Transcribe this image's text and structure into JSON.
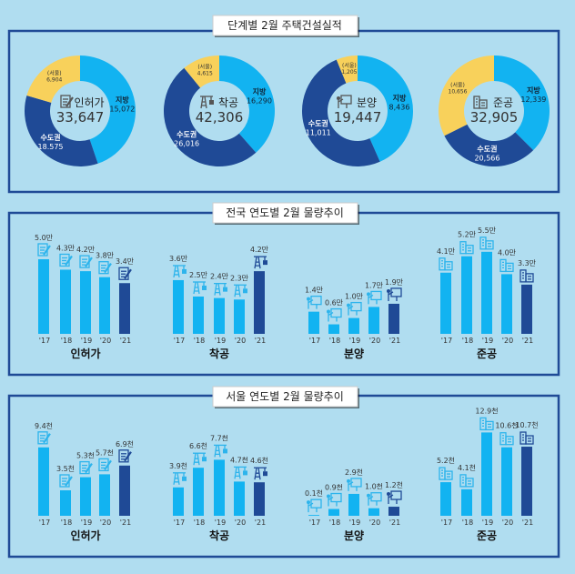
{
  "colors": {
    "background": "#b0ddf0",
    "panel_border": "#1f4a96",
    "light": "#12b3f1",
    "dark": "#1f4a96",
    "seoul": "#f8d15b",
    "icon_light": "#2db4ec",
    "icon_dark": "#1f4a96"
  },
  "chart_data": [
    {
      "type": "pie",
      "title": "단계별  2월 주택건설실적",
      "donuts": [
        {
          "name": "인허가",
          "total": "33,647",
          "icon": "permit-document-icon",
          "region": {
            "label": "지방",
            "value": "15,072",
            "num": 15072
          },
          "capital": {
            "label": "수도권",
            "value": "18.575",
            "num": 18575
          },
          "seoul": {
            "label": "(서울)",
            "value": "6,904",
            "num": 6904
          }
        },
        {
          "name": "착공",
          "total": "42,306",
          "icon": "crane-icon",
          "region": {
            "label": "지방",
            "value": "16,290",
            "num": 16290
          },
          "capital": {
            "label": "수도권",
            "value": "26,016",
            "num": 26016
          },
          "seoul": {
            "label": "(서울)",
            "value": "4,615",
            "num": 4615
          }
        },
        {
          "name": "분양",
          "total": "19,447",
          "icon": "presentation-board-icon",
          "region": {
            "label": "지방",
            "value": "8,436",
            "num": 8436
          },
          "capital": {
            "label": "수도권",
            "value": "11,011",
            "num": 11011
          },
          "seoul": {
            "label": "(서울)",
            "value": "1,205",
            "num": 1205
          }
        },
        {
          "name": "준공",
          "total": "32,905",
          "icon": "buildings-icon",
          "region": {
            "label": "지방",
            "value": "12,339",
            "num": 12339
          },
          "capital": {
            "label": "수도권",
            "value": "20,566",
            "num": 20566
          },
          "seoul": {
            "label": "(서울)",
            "value": "10,656",
            "num": 10656
          }
        }
      ]
    },
    {
      "type": "bar",
      "title": "전국 연도별 2월  물량추이",
      "unit": "만",
      "categories": [
        "'17",
        "'18",
        "'19",
        "'20",
        "'21"
      ],
      "groups": [
        {
          "name": "인허가",
          "icon": "permit-document-icon",
          "values": [
            5.0,
            4.3,
            4.2,
            3.8,
            3.4
          ],
          "labels": [
            "5.0만",
            "4.3만",
            "4.2만",
            "3.8만",
            "3.4만"
          ]
        },
        {
          "name": "착공",
          "icon": "crane-icon",
          "values": [
            3.6,
            2.5,
            2.4,
            2.3,
            4.2
          ],
          "labels": [
            "3.6만",
            "2.5만",
            "2.4만",
            "2.3만",
            "4.2만"
          ]
        },
        {
          "name": "분양",
          "icon": "presentation-board-icon",
          "values": [
            1.4,
            0.6,
            1.0,
            1.7,
            1.9
          ],
          "labels": [
            "1.4만",
            "0.6만",
            "1.0만",
            "1.7만",
            "1.9만"
          ]
        },
        {
          "name": "준공",
          "icon": "buildings-icon",
          "values": [
            4.1,
            5.2,
            5.5,
            4.0,
            3.3
          ],
          "labels": [
            "4.1만",
            "5.2만",
            "5.5만",
            "4.0만",
            "3.3만"
          ]
        }
      ]
    },
    {
      "type": "bar",
      "title": "서울 연도별 2월  물량추이",
      "unit": "천",
      "categories": [
        "'17",
        "'18",
        "'19",
        "'20",
        "'21"
      ],
      "groups": [
        {
          "name": "인허가",
          "icon": "permit-document-icon",
          "values": [
            9.4,
            3.5,
            5.3,
            5.7,
            6.9
          ],
          "labels": [
            "9.4천",
            "3.5천",
            "5.3천",
            "5.7천",
            "6.9천"
          ]
        },
        {
          "name": "착공",
          "icon": "crane-icon",
          "values": [
            3.9,
            6.6,
            7.7,
            4.7,
            4.6
          ],
          "labels": [
            "3.9천",
            "6.6천",
            "7.7천",
            "4.7천",
            "4.6천"
          ]
        },
        {
          "name": "분양",
          "icon": "presentation-board-icon",
          "values": [
            0.1,
            0.9,
            2.9,
            1.0,
            1.2
          ],
          "labels": [
            "0.1천",
            "0.9천",
            "2.9천",
            "1.0천",
            "1.2천"
          ]
        },
        {
          "name": "준공",
          "icon": "buildings-icon",
          "values": [
            5.2,
            4.1,
            12.9,
            10.6,
            10.7
          ],
          "labels": [
            "5.2천",
            "4.1천",
            "12.9천",
            "10.6천",
            "10.7천"
          ]
        }
      ]
    }
  ]
}
